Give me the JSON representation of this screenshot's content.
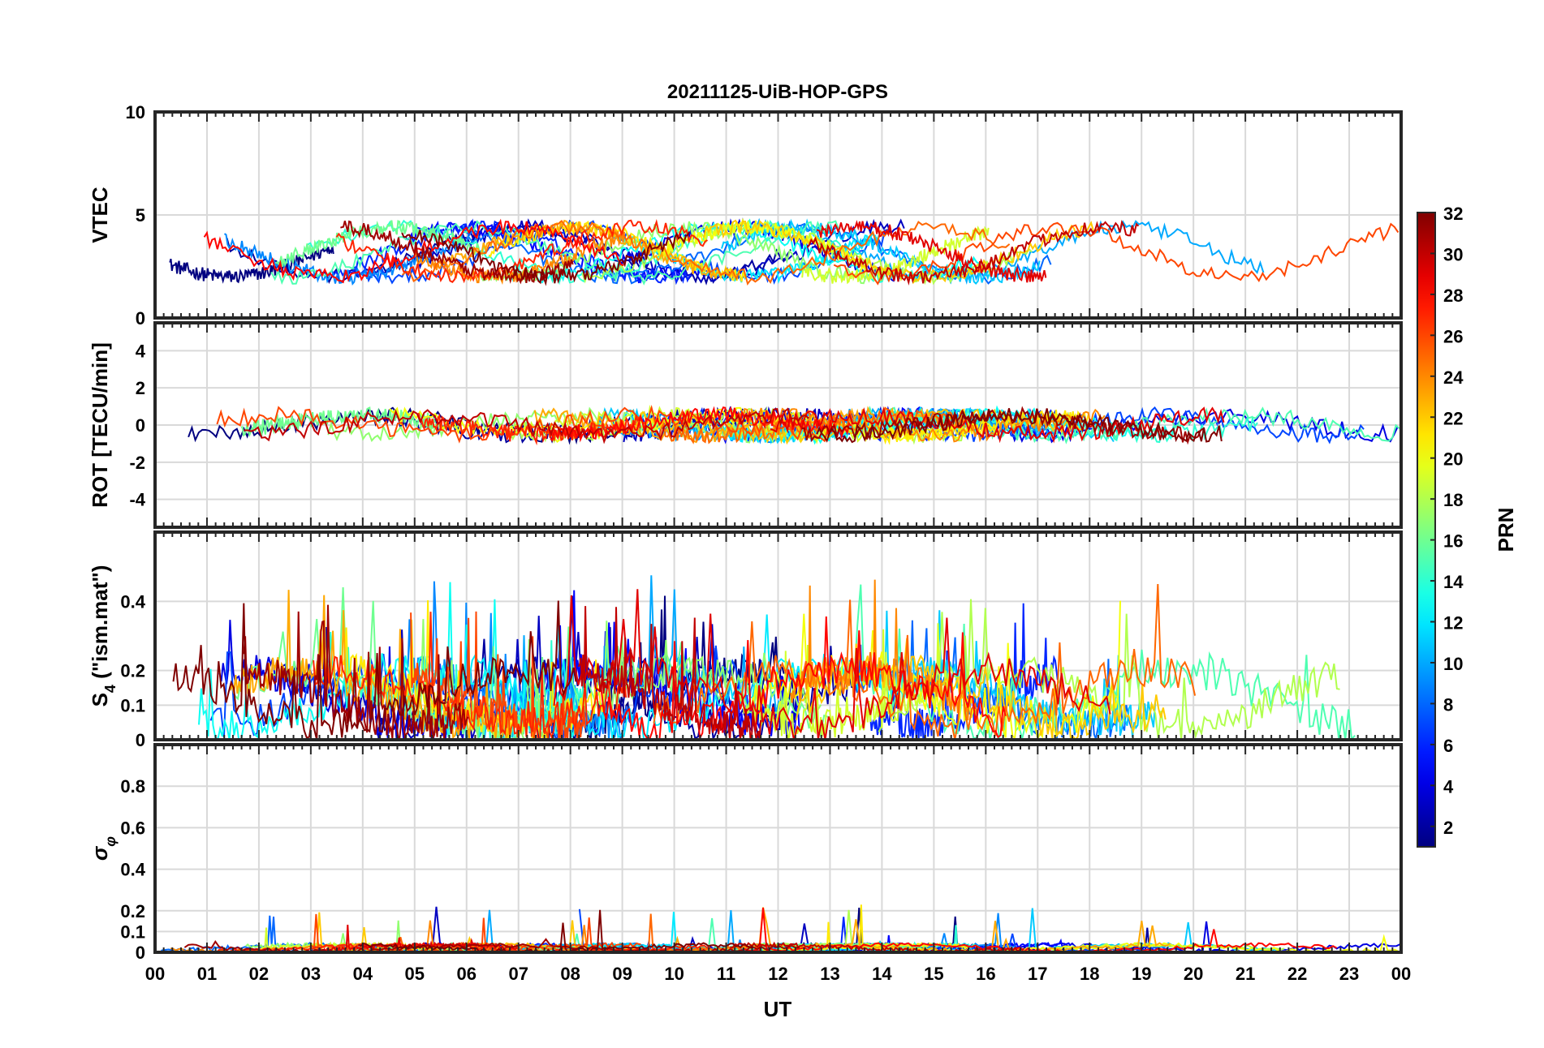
{
  "chart_data": {
    "type": "line",
    "title": "20211125-UiB-HOP-GPS",
    "xlabel": "UT",
    "x_tick_labels": [
      "00",
      "01",
      "02",
      "03",
      "04",
      "05",
      "06",
      "07",
      "08",
      "09",
      "10",
      "11",
      "12",
      "13",
      "14",
      "15",
      "16",
      "17",
      "18",
      "19",
      "20",
      "21",
      "22",
      "23",
      "00"
    ],
    "xlim_hours": [
      0,
      24
    ],
    "grid": true,
    "panels": [
      {
        "id": "vtec",
        "ylabel": "VTEC",
        "ylim": [
          0,
          10
        ],
        "yticks": [
          0,
          5,
          10
        ],
        "baseline": 3.2,
        "amplitude": 1.2,
        "noise": 0.35
      },
      {
        "id": "rot",
        "ylabel": "ROT [TECU/min]",
        "ylim": [
          -5.5,
          5.5
        ],
        "yticks": [
          -4,
          -2,
          0,
          2,
          4
        ],
        "baseline": 0.0,
        "amplitude": 0.5,
        "noise": 0.45
      },
      {
        "id": "s4",
        "ylabel_main": "S",
        "ylabel_sub": "4",
        "ylabel_rest": " (\"ism.mat\")",
        "ylim": [
          0,
          0.6
        ],
        "yticks": [
          0,
          0.1,
          0.2,
          0.4
        ],
        "baseline": 0.12,
        "amplitude": 0.08,
        "noise": 0.05
      },
      {
        "id": "sigma",
        "ylabel_main": "σ",
        "ylabel_sub": "φ",
        "ylim": [
          0,
          1.0
        ],
        "yticks": [
          0,
          0.1,
          0.2,
          0.4,
          0.6,
          0.8
        ],
        "baseline": 0.02,
        "amplitude": 0.015,
        "noise": 0.01
      }
    ],
    "colorbar": {
      "label": "PRN",
      "range": [
        1,
        32
      ],
      "tick_labels": [
        "2",
        "4",
        "6",
        "8",
        "10",
        "12",
        "14",
        "16",
        "18",
        "20",
        "22",
        "24",
        "26",
        "28",
        "30",
        "32"
      ],
      "colormap": "jet"
    },
    "series_prn": [
      1,
      2,
      3,
      4,
      5,
      6,
      7,
      8,
      9,
      10,
      11,
      12,
      13,
      14,
      15,
      16,
      17,
      18,
      19,
      20,
      21,
      22,
      23,
      24,
      25,
      26,
      27,
      28,
      29,
      30,
      31,
      32
    ]
  }
}
